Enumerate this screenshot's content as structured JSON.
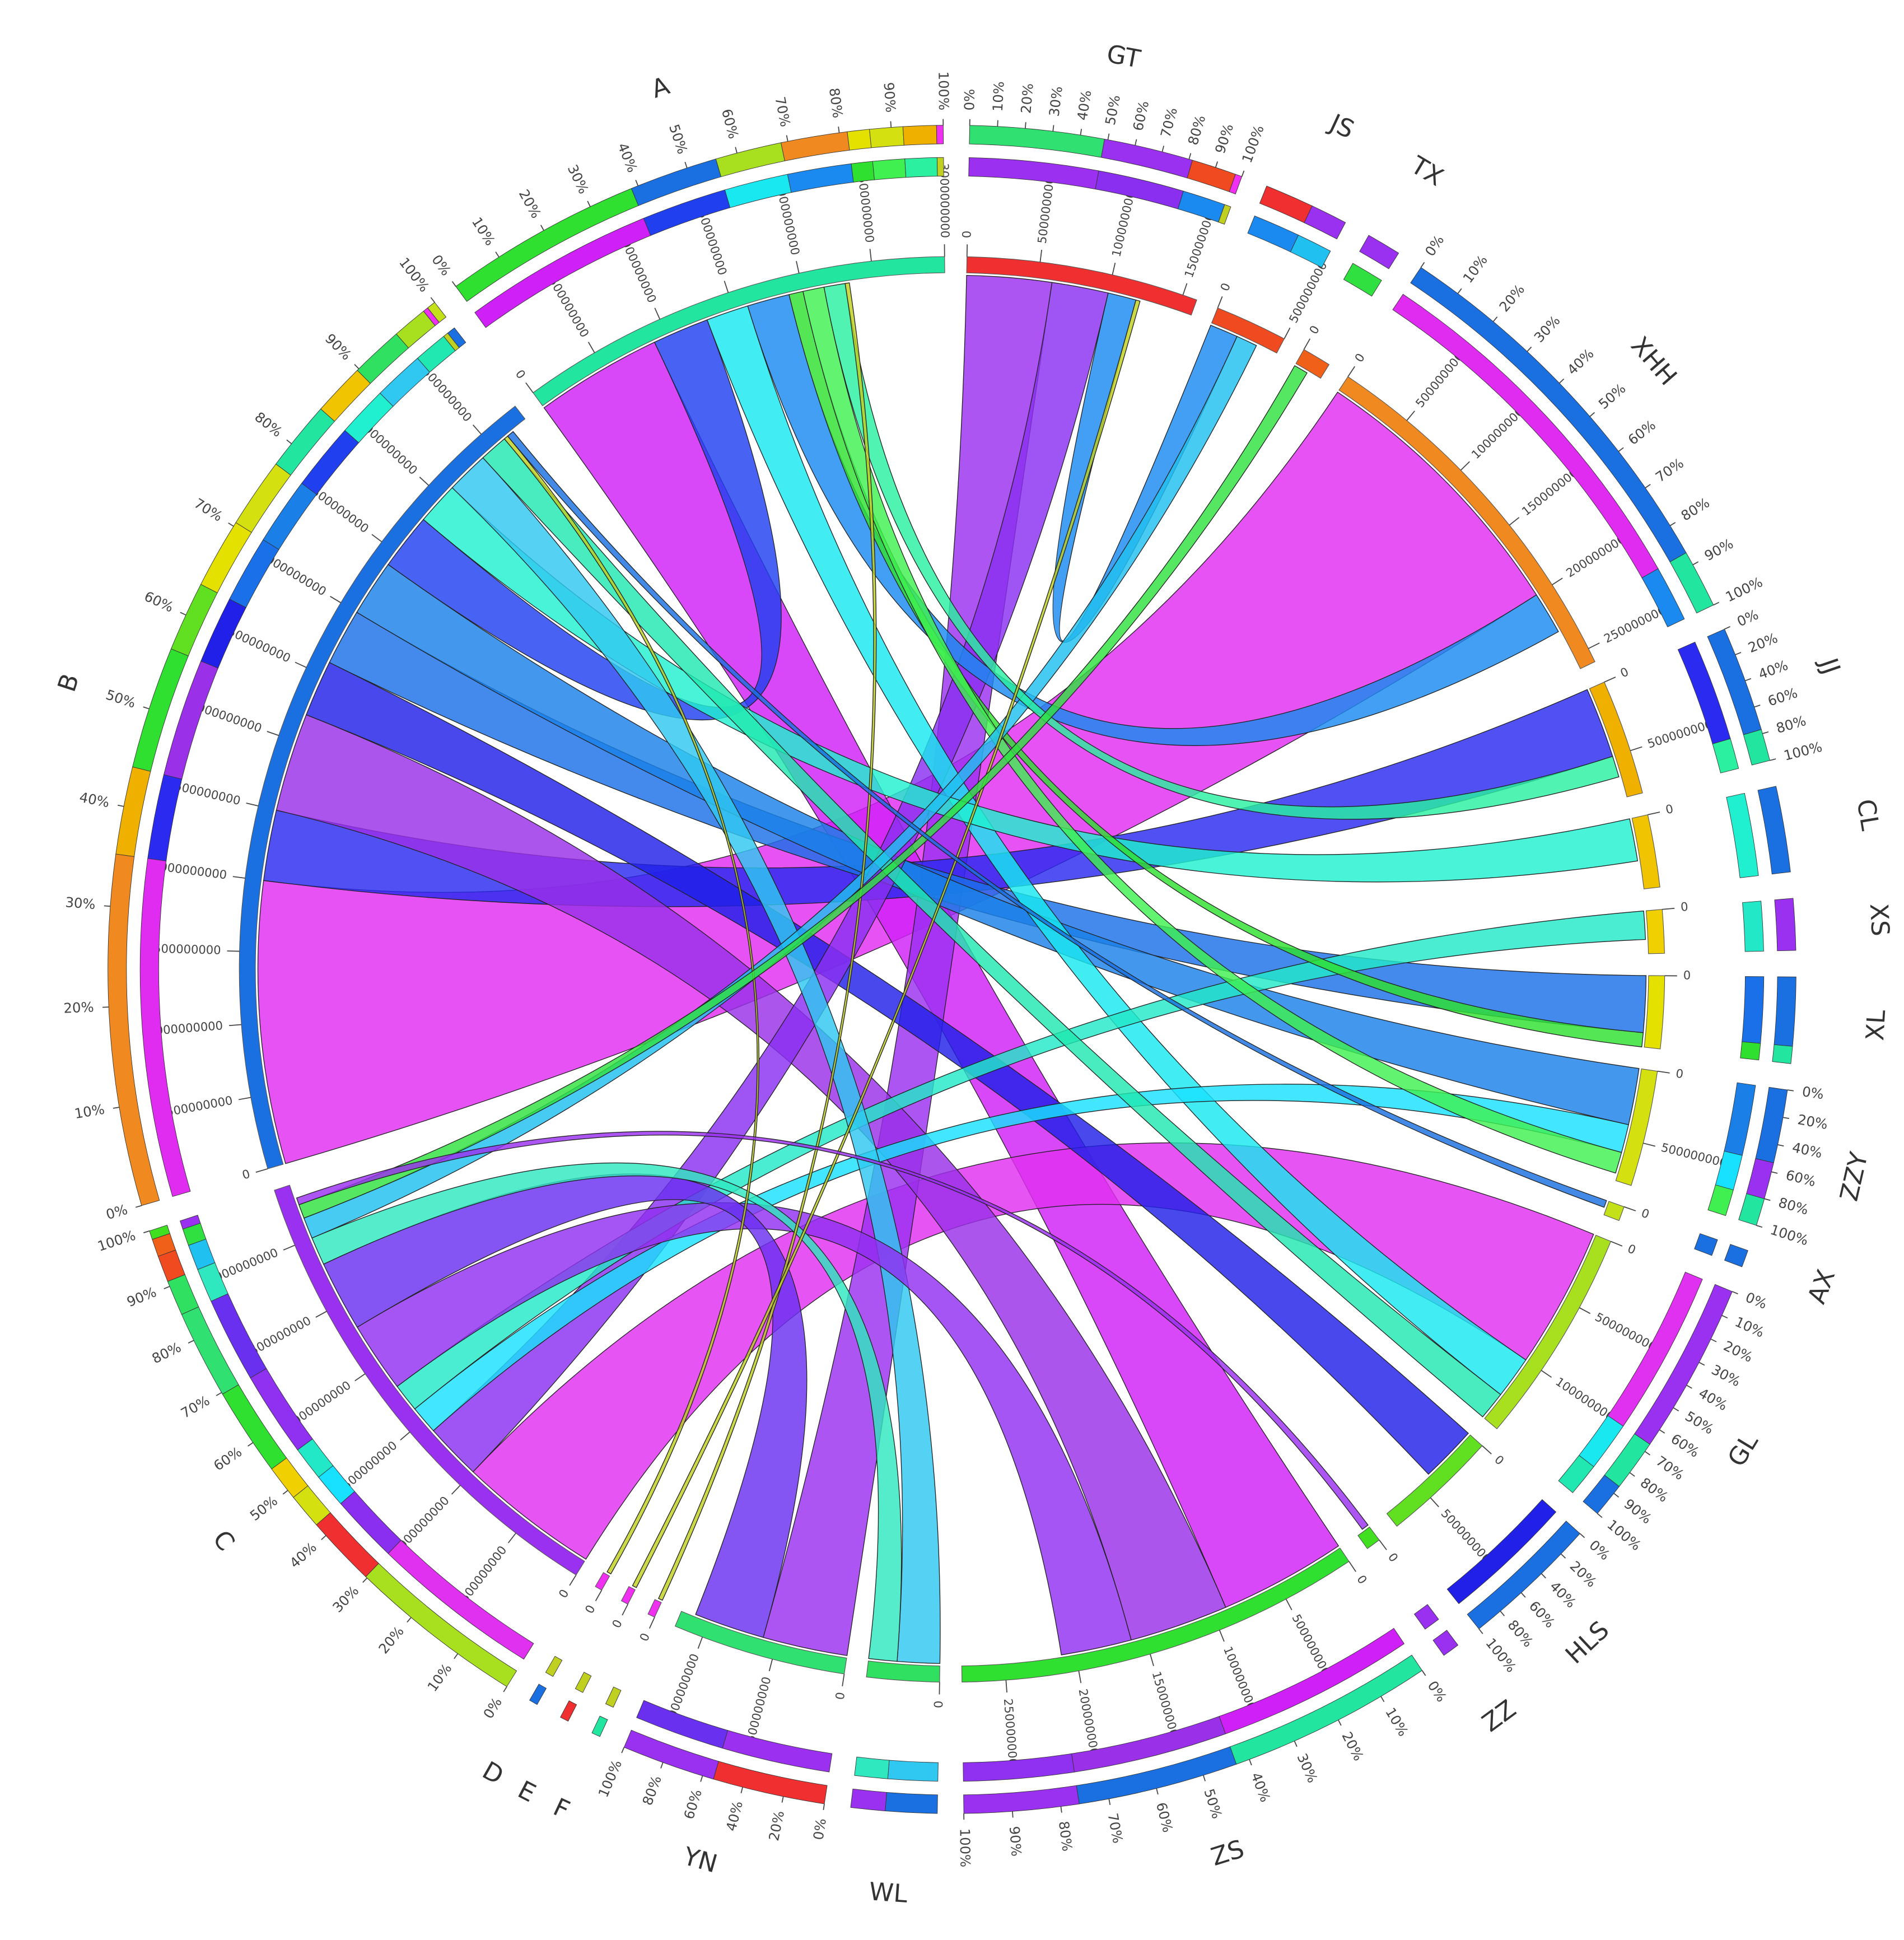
{
  "chart_data": {
    "type": "chord",
    "segments": [
      {
        "name": "A",
        "size": 3000000000,
        "color": "#22e6a0",
        "ticks": [
          0,
          500000000,
          1000000000,
          1500000000,
          2000000000,
          2500000000,
          3000000000
        ]
      },
      {
        "name": "GT",
        "size": 1600000000,
        "color": "#f03030",
        "ticks": [
          0,
          500000000,
          1000000000,
          1500000000
        ]
      },
      {
        "name": "JS",
        "size": 500000000,
        "color": "#f04a20",
        "ticks": [
          0,
          500000000
        ]
      },
      {
        "name": "TX",
        "size": 200000000,
        "color": "#f06018",
        "ticks": [
          0
        ]
      },
      {
        "name": "XHH",
        "size": 2600000000,
        "color": "#f08a20",
        "ticks": [
          0,
          500000000,
          1000000000,
          1500000000,
          2000000000,
          2500000000
        ]
      },
      {
        "name": "JJ",
        "size": 800000000,
        "color": "#f0b000",
        "ticks": [
          0,
          500000000
        ]
      },
      {
        "name": "CL",
        "size": 500000000,
        "color": "#f0c400",
        "ticks": [
          0
        ]
      },
      {
        "name": "XS",
        "size": 300000000,
        "color": "#f0d000",
        "ticks": [
          0
        ]
      },
      {
        "name": "XL",
        "size": 500000000,
        "color": "#e4e000",
        "ticks": [
          0
        ]
      },
      {
        "name": "ZZY",
        "size": 800000000,
        "color": "#d4e010",
        "ticks": [
          0,
          500000000
        ]
      },
      {
        "name": "AX",
        "size": 100000000,
        "color": "#c4e018",
        "ticks": [
          0
        ]
      },
      {
        "name": "GL",
        "size": 1500000000,
        "color": "#a8e020",
        "ticks": [
          0,
          500000000,
          1000000000
        ]
      },
      {
        "name": "HLS",
        "size": 800000000,
        "color": "#60e020",
        "ticks": [
          0,
          500000000
        ]
      },
      {
        "name": "ZZ",
        "size": 100000000,
        "color": "#40e020",
        "ticks": [
          0
        ]
      },
      {
        "name": "ZS",
        "size": 2800000000,
        "color": "#30e030",
        "ticks": [
          0,
          500000000,
          1000000000,
          1500000000,
          2000000000,
          2500000000
        ]
      },
      {
        "name": "WL",
        "size": 500000000,
        "color": "#30e060",
        "ticks": [
          0
        ]
      },
      {
        "name": "YN",
        "size": 1200000000,
        "color": "#30e070",
        "ticks": [
          0,
          500000000,
          1000000000
        ]
      },
      {
        "name": "F",
        "size": 50000000,
        "color": "#f030f0",
        "ticks": [
          0
        ]
      },
      {
        "name": "E",
        "size": 50000000,
        "color": "#f030f0",
        "ticks": [
          0
        ]
      },
      {
        "name": "D",
        "size": 50000000,
        "color": "#f030f0",
        "ticks": [
          0
        ]
      },
      {
        "name": "C",
        "size": 3400000000,
        "color": "#9a30f0",
        "ticks": [
          0,
          500000000,
          1000000000,
          1500000000,
          2000000000,
          2500000000,
          3000000000
        ]
      },
      {
        "name": "B",
        "size": 5800000000,
        "color": "#1a70e0",
        "ticks": [
          0,
          500000000,
          1000000000,
          1500000000,
          2000000000,
          2500000000,
          3000000000,
          3500000000,
          4000000000,
          4500000000,
          5000000000,
          5500000000
        ]
      }
    ],
    "links": [
      {
        "source": "B",
        "target": "XHH",
        "value": 2000000000,
        "color": "#e02cf0"
      },
      {
        "source": "A",
        "target": "ZS",
        "value": 900000000,
        "color": "#d020f8"
      },
      {
        "source": "C",
        "target": "GL",
        "value": 1000000000,
        "color": "#e030f0"
      },
      {
        "source": "GT",
        "target": "YN",
        "value": 600000000,
        "color": "#9b30f0"
      },
      {
        "source": "B",
        "target": "JJ",
        "value": 500000000,
        "color": "#2a2af0"
      },
      {
        "source": "B",
        "target": "ZS",
        "value": 700000000,
        "color": "#9a30e8"
      },
      {
        "source": "B",
        "target": "HLS",
        "value": 400000000,
        "color": "#2020e8"
      },
      {
        "source": "B",
        "target": "XL",
        "value": 400000000,
        "color": "#1a70e8"
      },
      {
        "source": "B",
        "target": "ZZY",
        "value": 400000000,
        "color": "#1a80e8"
      },
      {
        "source": "A",
        "target": "B",
        "value": 400000000,
        "color": "#2040f0"
      },
      {
        "source": "GT",
        "target": "C",
        "value": 400000000,
        "color": "#8a2ff0"
      },
      {
        "source": "A",
        "target": "GL",
        "value": 300000000,
        "color": "#19e8f0"
      },
      {
        "source": "B",
        "target": "CL",
        "value": 300000000,
        "color": "#20f0d0"
      },
      {
        "source": "C",
        "target": "ZZY",
        "value": 200000000,
        "color": "#18e0ff"
      },
      {
        "source": "C",
        "target": "XS",
        "value": 200000000,
        "color": "#22e8c8"
      },
      {
        "source": "A",
        "target": "XHH",
        "value": 300000000,
        "color": "#1a8af0"
      },
      {
        "source": "B",
        "target": "WL",
        "value": 300000000,
        "color": "#30c8f0"
      },
      {
        "source": "C",
        "target": "ZS",
        "value": 500000000,
        "color": "#9030f0"
      },
      {
        "source": "C",
        "target": "YN",
        "value": 500000000,
        "color": "#6a30f0"
      },
      {
        "source": "GT",
        "target": "JS",
        "value": 200000000,
        "color": "#1a8af0"
      },
      {
        "source": "A",
        "target": "XL",
        "value": 100000000,
        "color": "#30e030"
      },
      {
        "source": "B",
        "target": "GL",
        "value": 200000000,
        "color": "#20e8b0"
      },
      {
        "source": "C",
        "target": "WL",
        "value": 200000000,
        "color": "#30e8c0"
      },
      {
        "source": "A",
        "target": "ZZY",
        "value": 150000000,
        "color": "#40f050"
      },
      {
        "source": "JS",
        "target": "C",
        "value": 150000000,
        "color": "#20c0f0"
      },
      {
        "source": "A",
        "target": "JJ",
        "value": 150000000,
        "color": "#2af0a0"
      },
      {
        "source": "F",
        "target": "A",
        "value": 30000000,
        "color": "#c0d020"
      },
      {
        "source": "E",
        "target": "GT",
        "value": 30000000,
        "color": "#c0d020"
      },
      {
        "source": "D",
        "target": "B",
        "value": 30000000,
        "color": "#c0d020"
      },
      {
        "source": "TX",
        "target": "C",
        "value": 100000000,
        "color": "#30e040"
      },
      {
        "source": "AX",
        "target": "B",
        "value": 50000000,
        "color": "#1a70e0"
      },
      {
        "source": "ZZ",
        "target": "C",
        "value": 50000000,
        "color": "#9a30f0"
      }
    ],
    "percent_ticks": [
      {
        "value": 0,
        "label": "0%"
      },
      {
        "value": 10,
        "label": "10%"
      },
      {
        "value": 20,
        "label": "20%"
      },
      {
        "value": 30,
        "label": "30%"
      },
      {
        "value": 40,
        "label": "40%"
      },
      {
        "value": 50,
        "label": "50%"
      },
      {
        "value": 60,
        "label": "60%"
      },
      {
        "value": 70,
        "label": "70%"
      },
      {
        "value": 80,
        "label": "80%"
      },
      {
        "value": 90,
        "label": "90%"
      },
      {
        "value": 100,
        "label": "100%"
      }
    ]
  }
}
